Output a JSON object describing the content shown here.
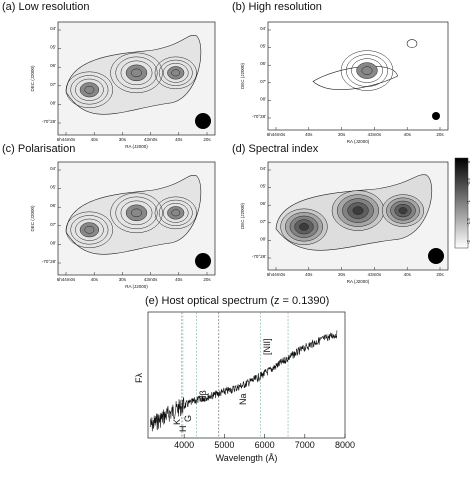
{
  "panels": [
    {
      "title": "(a) Low resolution",
      "ylabel": "DEC (J2000)",
      "xlabel": "RA (J2000)",
      "yticks": [
        "04'",
        "05'",
        "06'",
        "07'",
        "08'",
        "-70°28'"
      ],
      "xticks": [
        "6h44m0s",
        "40s",
        "30s",
        "43m0s",
        "40s",
        "20s"
      ]
    },
    {
      "title": "(b) High resolution",
      "ylabel": "DEC (J2000)",
      "xlabel": "RA (J2000)",
      "yticks": [
        "04'",
        "05'",
        "06'",
        "07'",
        "08'",
        "-70°28'"
      ],
      "xticks": [
        "6h44m0s",
        "40s",
        "30s",
        "43m0s",
        "40s",
        "20s"
      ]
    },
    {
      "title": "(c) Polarisation",
      "ylabel": "DEC (J2000)",
      "xlabel": "RA (J2000)",
      "yticks": [
        "04'",
        "05'",
        "06'",
        "07'",
        "08'",
        "-70°28'"
      ],
      "xticks": [
        "6h44m0s",
        "40s",
        "30s",
        "43m0s",
        "40s",
        "20s"
      ]
    },
    {
      "title": "(d) Spectral index",
      "ylabel": "DEC (J2000)",
      "xlabel": "RA (J2000)",
      "yticks": [
        "04'",
        "05'",
        "06'",
        "07'",
        "08'",
        "-70°28'"
      ],
      "xticks": [
        "6h44m0s",
        "40s",
        "30s",
        "43m0s",
        "40s",
        "20s"
      ]
    }
  ],
  "colorbar": {
    "ticks": [
      "0",
      "-0.5",
      "-1",
      "-1.5",
      "-2"
    ]
  },
  "spectrum": {
    "title": "(e) Host optical spectrum (z = 0.1390)",
    "xlabel": "Wavelength (Å)",
    "ylabel": "Fλ",
    "xticks": [
      4000,
      5000,
      6000,
      7000,
      8000
    ],
    "lines": [
      "K",
      "H",
      "G",
      "Hβ",
      "Na",
      "[NII]"
    ]
  }
}
